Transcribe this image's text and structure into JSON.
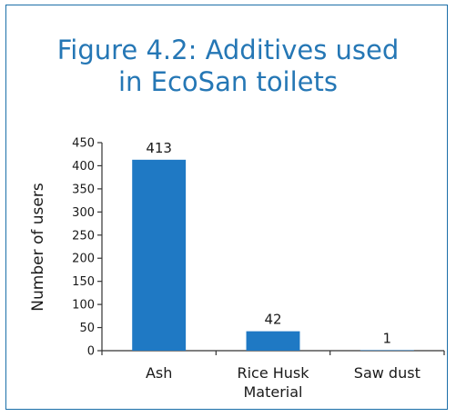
{
  "chart_data": {
    "type": "bar",
    "title": "Figure 4.2: Additives used\nin EcoSan toilets",
    "xlabel": "",
    "ylabel": "Number of users",
    "categories": [
      "Ash",
      "Rice Husk\nMaterial",
      "Saw dust"
    ],
    "values": [
      413,
      42,
      1
    ],
    "data_labels": [
      "413",
      "42",
      "1"
    ],
    "yticks": [
      0,
      50,
      100,
      150,
      200,
      250,
      300,
      350,
      400,
      450
    ],
    "ylim": [
      0,
      450
    ],
    "grid": false,
    "legend": "none",
    "colors": {
      "bar": "#1f79c4",
      "frame": "#1b6fa8",
      "title": "#2577b5",
      "axis": "#333333"
    }
  }
}
